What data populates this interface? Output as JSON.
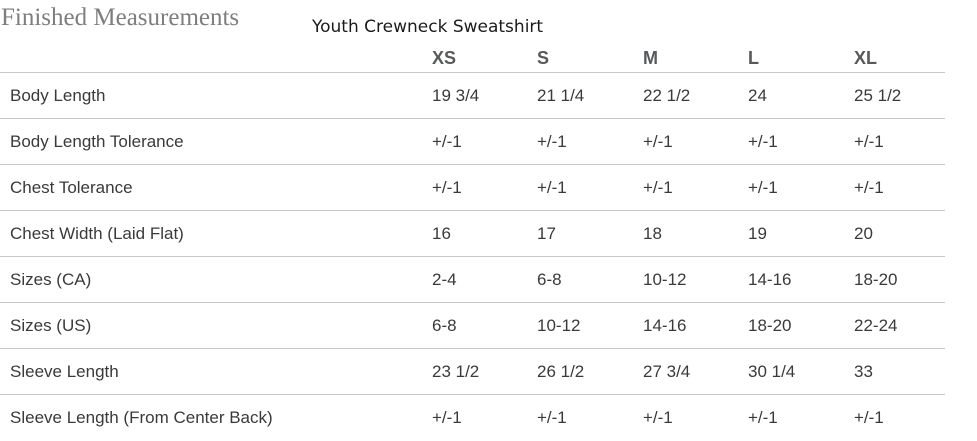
{
  "page": {
    "title": "Finished Measurements",
    "product_name": "Youth Crewneck Sweatshirt"
  },
  "chart_data": {
    "type": "table",
    "title": "Finished Measurements",
    "subtitle": "Youth Crewneck Sweatshirt",
    "columns": [
      "XS",
      "S",
      "M",
      "L",
      "XL"
    ],
    "rows": [
      {
        "label": "Body Length",
        "values": [
          "19 3/4",
          "21 1/4",
          "22 1/2",
          "24",
          "25 1/2"
        ]
      },
      {
        "label": "Body Length Tolerance",
        "values": [
          "+/-1",
          "+/-1",
          "+/-1",
          "+/-1",
          "+/-1"
        ]
      },
      {
        "label": "Chest Tolerance",
        "values": [
          "+/-1",
          "+/-1",
          "+/-1",
          "+/-1",
          "+/-1"
        ]
      },
      {
        "label": "Chest Width (Laid Flat)",
        "values": [
          "16",
          "17",
          "18",
          "19",
          "20"
        ]
      },
      {
        "label": "Sizes (CA)",
        "values": [
          "2-4",
          "6-8",
          "10-12",
          "14-16",
          "18-20"
        ]
      },
      {
        "label": "Sizes (US)",
        "values": [
          "6-8",
          "10-12",
          "14-16",
          "18-20",
          "22-24"
        ]
      },
      {
        "label": "Sleeve Length",
        "values": [
          "23 1/2",
          "26 1/2",
          "27 3/4",
          "30 1/4",
          "33"
        ]
      },
      {
        "label": "Sleeve Length (From Center Back)",
        "values": [
          "+/-1",
          "+/-1",
          "+/-1",
          "+/-1",
          "+/-1"
        ]
      }
    ]
  },
  "colors": {
    "title_gray": "#7e7e7e",
    "header_gray": "#57595b",
    "body_text": "#3a3a3a",
    "divider": "#c8c8c8"
  }
}
